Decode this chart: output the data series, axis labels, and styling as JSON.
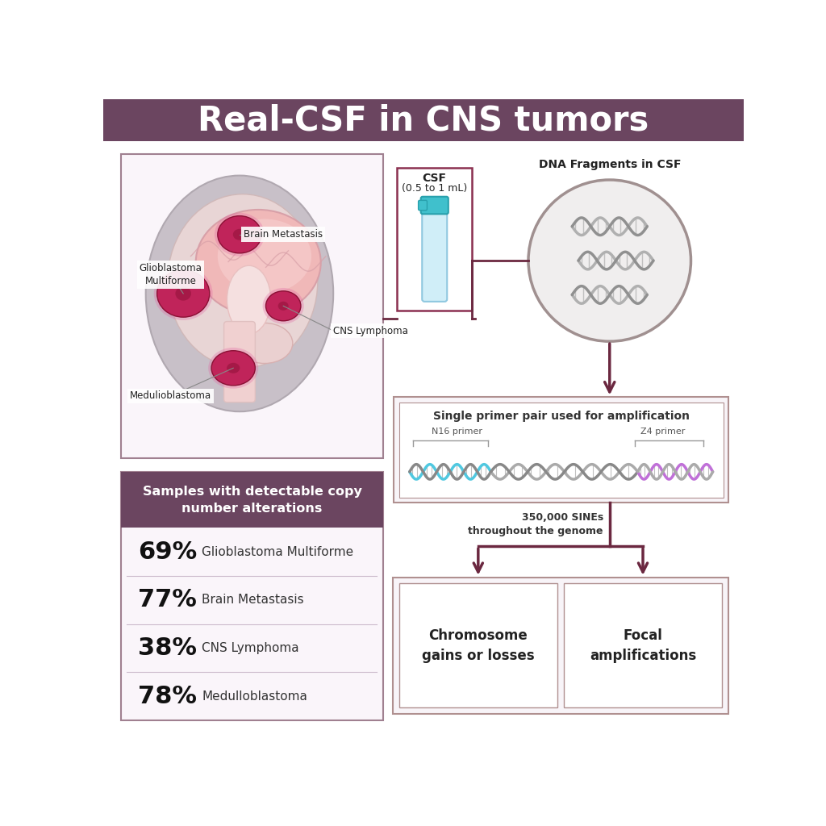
{
  "title": "Real-CSF in CNS tumors",
  "title_bg_color": "#6b4560",
  "title_text_color": "#ffffff",
  "bg_color": "#ffffff",
  "stats_header": "Samples with detectable copy\nnumber alterations",
  "stats_header_bg": "#6b4560",
  "stats_header_text": "#ffffff",
  "stats_box_bg": "#faf5fa",
  "stats_box_border": "#a08090",
  "stats": [
    {
      "pct": "69%",
      "label": "Glioblastoma Multiforme"
    },
    {
      "pct": "77%",
      "label": "Brain Metastasis"
    },
    {
      "pct": "38%",
      "label": "CNS Lymphoma"
    },
    {
      "pct": "78%",
      "label": "Medulloblastoma"
    }
  ],
  "brain_box_border": "#a08090",
  "csf_label_bold": "CSF",
  "csf_label_sub": "(0.5 to 1 mL)",
  "dna_label": "DNA Fragments in CSF",
  "primer_box_label": "Single primer pair used for amplification",
  "primer_n16": "N16 primer",
  "primer_z4": "Z4 primer",
  "sines_label": "350,000 SINEs\nthroughout the genome",
  "outcome1": "Chromosome\ngains or losses",
  "outcome2": "Focal\namplifications",
  "arrow_color": "#6b2840",
  "flow_line_color": "#6b2840",
  "csf_tube_cap": "#40c0cc",
  "csf_tube_liquid": "#d0eef8",
  "csf_box_border": "#8b3050",
  "dna_circle_bg": "#f0eeee",
  "dna_circle_border": "#a09090",
  "primer_box_border": "#b09090",
  "primer_box_bg": "#f8f4f8",
  "primer_inner_bg": "#ffffff",
  "outcome_box_border": "#b09090",
  "outcome_box_bg": "#f8f4f8",
  "outcome_inner_bg": "#ffffff",
  "tumor_color": "#c0245a",
  "tumor_dark": "#8b1035",
  "head_color": "#c8c0c8",
  "skull_color": "#e8d5d5",
  "brain_color": "#f0b8b8",
  "brain_inner_color": "#f8d0d0",
  "brainstem_color": "#f0d0d0",
  "divider_color": "#ccbbcc"
}
